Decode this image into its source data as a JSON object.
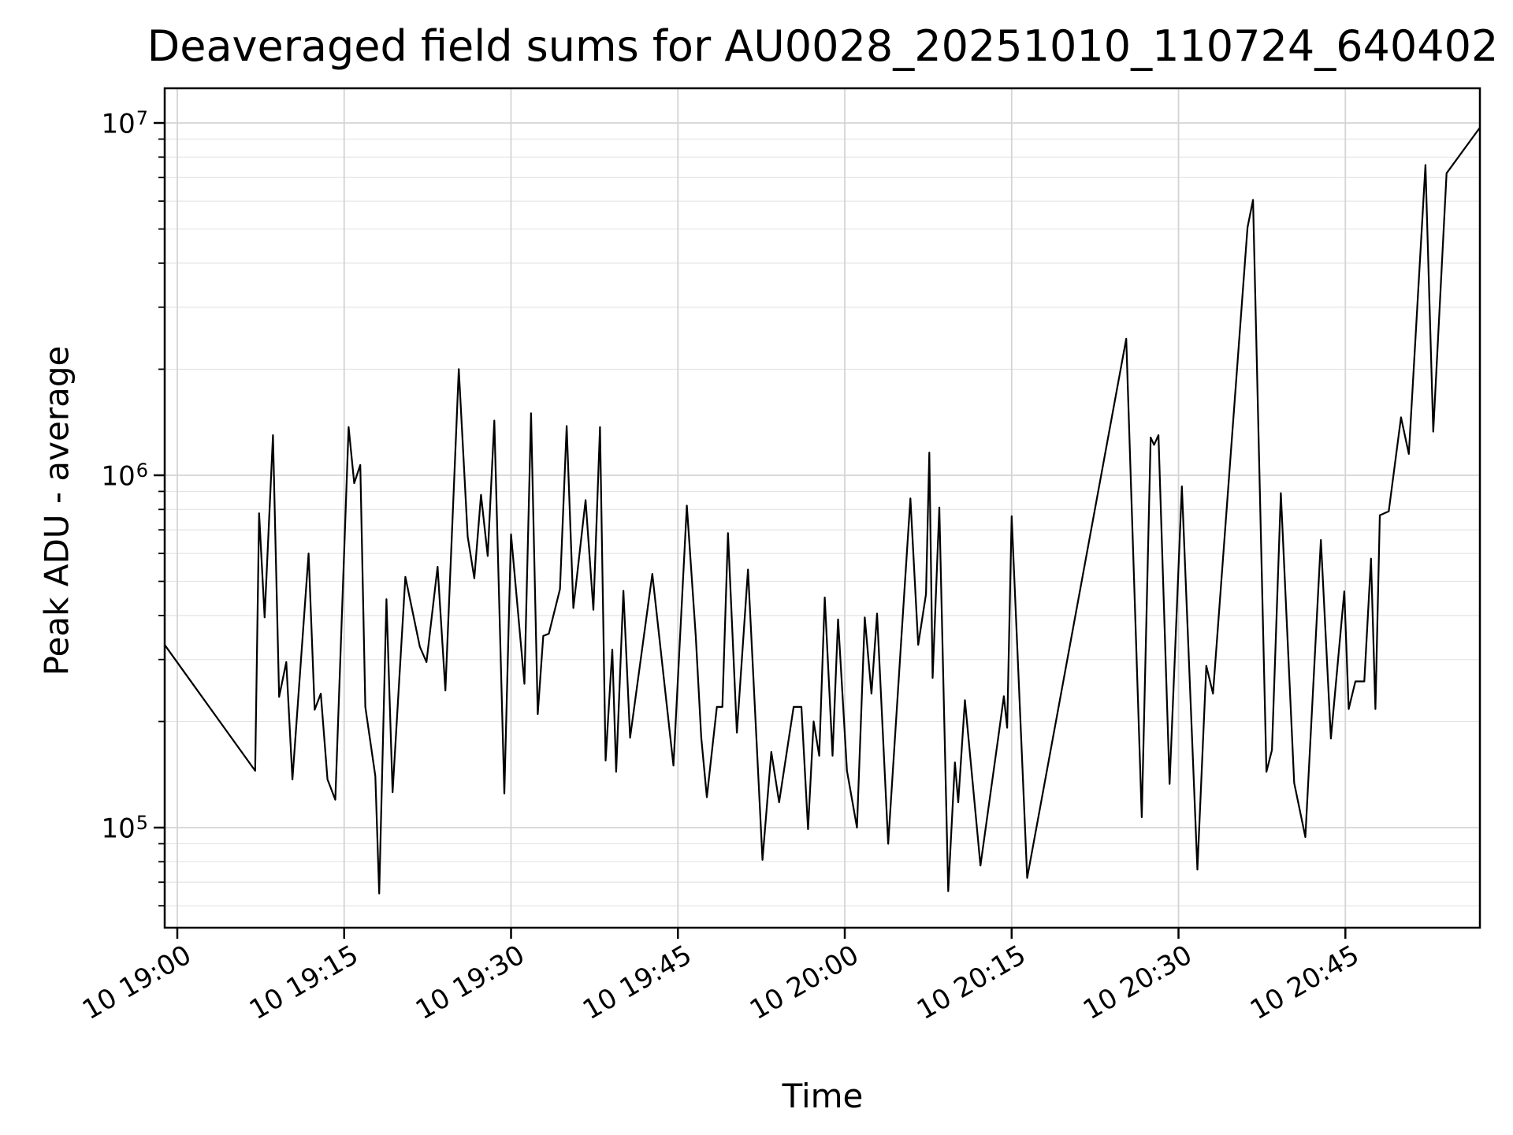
{
  "chart_data": {
    "type": "line",
    "title": "Deaveraged field sums for AU0028_20251010_110724_640402",
    "xlabel": "Time",
    "ylabel": "Peak ADU - average",
    "yscale": "log",
    "ylim": [
      51500,
      12550000
    ],
    "xlim_minutes_after_1900": [
      -1.13,
      117.15
    ],
    "grid": true,
    "legend": "none",
    "line_color": "#000000",
    "grid_major_color": "#d4d4d4",
    "grid_minor_color": "#e4e4e4",
    "background_color": "#ffffff",
    "x_ticks": [
      {
        "label": "10 19:00",
        "minutes": 0
      },
      {
        "label": "10 19:15",
        "minutes": 15
      },
      {
        "label": "10 19:30",
        "minutes": 30
      },
      {
        "label": "10 19:45",
        "minutes": 45
      },
      {
        "label": "10 20:00",
        "minutes": 60
      },
      {
        "label": "10 20:15",
        "minutes": 75
      },
      {
        "label": "10 20:30",
        "minutes": 90
      },
      {
        "label": "10 20:45",
        "minutes": 105
      }
    ],
    "y_ticks": [
      {
        "base": "10",
        "exp": "5",
        "value": 100000
      },
      {
        "base": "10",
        "exp": "6",
        "value": 1000000
      },
      {
        "base": "10",
        "exp": "7",
        "value": 10000000
      }
    ],
    "series": [
      {
        "name": "peak_adu_average",
        "points_minutes_value": [
          [
            -1.13,
            330000
          ],
          [
            7.0,
            145000
          ],
          [
            7.35,
            780000
          ],
          [
            7.85,
            395000
          ],
          [
            8.6,
            1300000
          ],
          [
            9.15,
            235000
          ],
          [
            9.8,
            295000
          ],
          [
            10.35,
            137000
          ],
          [
            11.8,
            600000
          ],
          [
            12.35,
            216000
          ],
          [
            12.9,
            240000
          ],
          [
            13.5,
            137000
          ],
          [
            14.2,
            120000
          ],
          [
            15.4,
            1370000
          ],
          [
            15.9,
            950000
          ],
          [
            16.45,
            1070000
          ],
          [
            16.9,
            220000
          ],
          [
            17.8,
            140000
          ],
          [
            18.15,
            65000
          ],
          [
            18.8,
            445000
          ],
          [
            19.35,
            126000
          ],
          [
            20.5,
            515000
          ],
          [
            21.8,
            326000
          ],
          [
            22.4,
            295000
          ],
          [
            23.4,
            550000
          ],
          [
            24.1,
            245000
          ],
          [
            25.3,
            2000000
          ],
          [
            26.1,
            670000
          ],
          [
            26.7,
            510000
          ],
          [
            27.3,
            880000
          ],
          [
            27.9,
            590000
          ],
          [
            28.5,
            1430000
          ],
          [
            29.4,
            125000
          ],
          [
            30.0,
            680000
          ],
          [
            31.2,
            256000
          ],
          [
            31.8,
            1500000
          ],
          [
            32.4,
            210000
          ],
          [
            32.9,
            350000
          ],
          [
            33.4,
            355000
          ],
          [
            34.4,
            475000
          ],
          [
            35.0,
            1380000
          ],
          [
            35.6,
            420000
          ],
          [
            36.7,
            850000
          ],
          [
            37.4,
            415000
          ],
          [
            38.0,
            1370000
          ],
          [
            38.5,
            155000
          ],
          [
            39.1,
            320000
          ],
          [
            39.45,
            144000
          ],
          [
            40.1,
            470000
          ],
          [
            40.7,
            180000
          ],
          [
            42.7,
            525000
          ],
          [
            44.6,
            150000
          ],
          [
            45.8,
            820000
          ],
          [
            46.6,
            350000
          ],
          [
            47.1,
            180000
          ],
          [
            47.6,
            122000
          ],
          [
            48.5,
            220000
          ],
          [
            49.0,
            220000
          ],
          [
            49.5,
            685000
          ],
          [
            50.3,
            186000
          ],
          [
            51.3,
            540000
          ],
          [
            52.6,
            81000
          ],
          [
            53.4,
            164000
          ],
          [
            54.1,
            118000
          ],
          [
            55.4,
            220000
          ],
          [
            56.1,
            220000
          ],
          [
            56.7,
            99000
          ],
          [
            57.2,
            200000
          ],
          [
            57.7,
            160000
          ],
          [
            58.2,
            450000
          ],
          [
            58.9,
            160000
          ],
          [
            59.4,
            390000
          ],
          [
            60.2,
            145000
          ],
          [
            61.1,
            100000
          ],
          [
            61.8,
            395000
          ],
          [
            62.4,
            240000
          ],
          [
            62.9,
            405000
          ],
          [
            63.9,
            90000
          ],
          [
            65.1,
            350000
          ],
          [
            65.9,
            860000
          ],
          [
            66.6,
            330000
          ],
          [
            67.3,
            460000
          ],
          [
            67.6,
            1160000
          ],
          [
            67.9,
            266000
          ],
          [
            68.5,
            810000
          ],
          [
            69.3,
            66000
          ],
          [
            69.9,
            153000
          ],
          [
            70.2,
            118000
          ],
          [
            70.8,
            230000
          ],
          [
            72.2,
            78000
          ],
          [
            73.9,
            190000
          ],
          [
            74.3,
            236000
          ],
          [
            74.6,
            192000
          ],
          [
            75.0,
            765000
          ],
          [
            76.4,
            72000
          ],
          [
            85.3,
            2440000
          ],
          [
            86.7,
            107000
          ],
          [
            87.5,
            1280000
          ],
          [
            87.8,
            1220000
          ],
          [
            88.2,
            1300000
          ],
          [
            89.2,
            133000
          ],
          [
            90.3,
            930000
          ],
          [
            91.7,
            76000
          ],
          [
            92.5,
            288000
          ],
          [
            93.1,
            240000
          ],
          [
            96.2,
            5050000
          ],
          [
            96.7,
            6050000
          ],
          [
            97.9,
            144000
          ],
          [
            98.4,
            166000
          ],
          [
            99.2,
            890000
          ],
          [
            100.4,
            134000
          ],
          [
            101.4,
            94000
          ],
          [
            102.8,
            655000
          ],
          [
            103.7,
            179000
          ],
          [
            104.9,
            468000
          ],
          [
            105.3,
            217000
          ],
          [
            105.9,
            260000
          ],
          [
            106.7,
            260000
          ],
          [
            107.3,
            580000
          ],
          [
            107.7,
            217000
          ],
          [
            108.1,
            770000
          ],
          [
            108.9,
            790000
          ],
          [
            110.0,
            1460000
          ],
          [
            110.7,
            1150000
          ],
          [
            112.2,
            7600000
          ],
          [
            112.9,
            1330000
          ],
          [
            114.1,
            7200000
          ],
          [
            117.15,
            9700000
          ]
        ]
      }
    ]
  }
}
